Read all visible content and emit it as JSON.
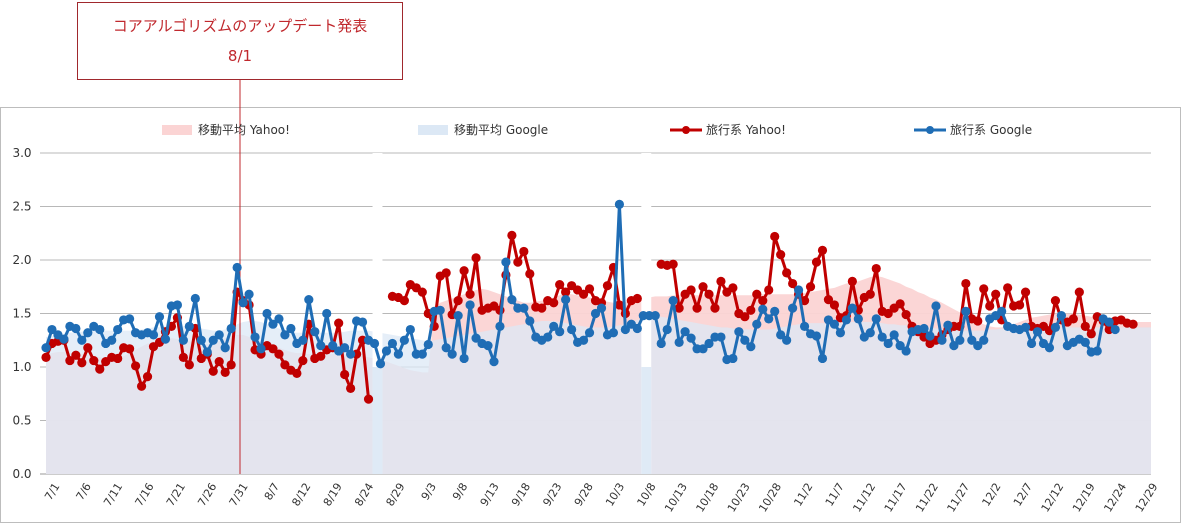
{
  "annotation": {
    "line1": "コアアルゴリズムのアップデート発表",
    "line2": "8/1",
    "date": "8/1"
  },
  "chart_data": {
    "type": "line",
    "x_start": "7/1",
    "x_end": "12/31",
    "ylim": [
      0,
      3.0
    ],
    "yticks": [
      "0.0",
      "0.5",
      "1.0",
      "1.5",
      "2.0",
      "2.5",
      "3.0"
    ],
    "grid": true,
    "legend_position": "top",
    "xtick_labels": [
      "7/1",
      "7/6",
      "7/11",
      "7/16",
      "7/21",
      "7/26",
      "7/31",
      "8/7",
      "8/12",
      "8/19",
      "8/24",
      "8/29",
      "9/3",
      "9/8",
      "9/13",
      "9/18",
      "9/23",
      "9/28",
      "10/3",
      "10/8",
      "10/13",
      "10/18",
      "10/23",
      "10/28",
      "11/2",
      "11/7",
      "11/12",
      "11/17",
      "11/22",
      "11/27",
      "12/2",
      "12/7",
      "12/12",
      "12/19",
      "12/24",
      "12/29"
    ],
    "series": [
      {
        "name": "移動平均 Yahoo!",
        "kind": "area",
        "color": "#fbd4d4",
        "values": [
          1.12,
          1.13,
          1.14,
          1.14,
          1.13,
          1.12,
          1.12,
          1.11,
          1.1,
          1.09,
          1.08,
          1.07,
          1.08,
          1.1,
          1.13,
          1.16,
          1.19,
          1.22,
          1.24,
          1.25,
          1.26,
          1.27,
          1.26,
          1.25,
          1.24,
          1.23,
          1.22,
          1.21,
          1.22,
          1.24,
          1.27,
          1.29,
          1.3,
          1.3,
          1.28,
          1.26,
          1.24,
          1.22,
          1.2,
          1.18,
          1.16,
          1.14,
          1.13,
          1.13,
          1.12,
          1.12,
          1.12,
          1.12,
          1.12,
          1.12,
          1.12,
          1.11,
          1.1,
          1.1,
          1.09,
          1.08,
          1.07,
          1.05,
          1.03,
          1.01,
          0.99,
          0.97,
          0.96,
          0.95,
          0.95,
          1.55,
          1.6,
          1.62,
          1.64,
          1.66,
          1.68,
          1.7,
          1.72,
          1.73,
          1.72,
          1.7,
          1.68,
          1.66,
          1.64,
          1.62,
          1.6,
          1.6,
          1.61,
          1.62,
          1.63,
          1.65,
          1.67,
          1.68,
          1.68,
          1.67,
          1.66,
          1.65,
          1.64,
          1.62,
          1.61,
          1.6,
          1.6,
          1.61,
          1.62,
          1.63,
          1.64,
          1.65,
          1.66,
          1.66,
          1.66,
          1.67,
          1.67,
          1.67,
          1.67,
          1.67,
          1.67,
          1.67,
          1.67,
          1.67,
          1.67,
          1.67,
          1.67,
          1.67,
          1.67,
          1.67,
          1.68,
          1.68,
          1.68,
          1.68,
          1.68,
          1.68,
          1.68,
          1.69,
          1.7,
          1.71,
          1.72,
          1.73,
          1.74,
          1.76,
          1.78,
          1.79,
          1.8,
          1.82,
          1.84,
          1.85,
          1.84,
          1.82,
          1.8,
          1.78,
          1.75,
          1.73,
          1.7,
          1.68,
          1.65,
          1.63,
          1.6,
          1.57,
          1.54,
          1.51,
          1.48,
          1.45,
          1.42,
          1.4,
          1.38,
          1.37,
          1.37,
          1.38,
          1.4,
          1.42,
          1.44,
          1.46,
          1.47,
          1.48,
          1.49,
          1.5,
          1.5,
          1.5,
          1.5,
          1.49,
          1.48,
          1.47,
          1.46,
          1.45,
          1.44,
          1.43,
          1.43,
          1.42,
          1.42,
          1.42,
          1.42,
          1.42
        ]
      },
      {
        "name": "移動平均 Google",
        "kind": "area",
        "color": "#dce8f5",
        "values": [
          1.28,
          1.29,
          1.3,
          1.31,
          1.32,
          1.33,
          1.33,
          1.34,
          1.34,
          1.34,
          1.34,
          1.34,
          1.34,
          1.34,
          1.34,
          1.34,
          1.35,
          1.36,
          1.37,
          1.37,
          1.38,
          1.38,
          1.38,
          1.38,
          1.38,
          1.37,
          1.36,
          1.35,
          1.34,
          1.34,
          1.35,
          1.37,
          1.4,
          1.42,
          1.43,
          1.43,
          1.42,
          1.4,
          1.38,
          1.36,
          1.34,
          1.33,
          1.32,
          1.32,
          1.32,
          1.32,
          1.32,
          1.32,
          1.32,
          1.32,
          1.33,
          1.34,
          1.34,
          1.34,
          1.34,
          1.33,
          1.32,
          1.31,
          1.3,
          1.29,
          1.28,
          1.27,
          1.26,
          1.25,
          1.24,
          1.25,
          1.26,
          1.27,
          1.28,
          1.29,
          1.3,
          1.31,
          1.32,
          1.33,
          1.34,
          1.35,
          1.36,
          1.37,
          1.38,
          1.39,
          1.4,
          1.41,
          1.42,
          1.43,
          1.43,
          1.43,
          1.42,
          1.41,
          1.4,
          1.39,
          1.38,
          1.37,
          1.37,
          1.37,
          1.37,
          1.38,
          1.39,
          1.4,
          1.42,
          1.44,
          1.46,
          1.48,
          1.48,
          1.47,
          1.46,
          1.45,
          1.44,
          1.43,
          1.42,
          1.41,
          1.4,
          1.39,
          1.38,
          1.37,
          1.37,
          1.36,
          1.35,
          1.35,
          1.35,
          1.35,
          1.35,
          1.35,
          1.36,
          1.37,
          1.38,
          1.39,
          1.4,
          1.41,
          1.41,
          1.41,
          1.41,
          1.41,
          1.41,
          1.41,
          1.41,
          1.42,
          1.42,
          1.42,
          1.42,
          1.42,
          1.41,
          1.4,
          1.4,
          1.39,
          1.39,
          1.38,
          1.38,
          1.37,
          1.37,
          1.36,
          1.36,
          1.35,
          1.35,
          1.34,
          1.34,
          1.34,
          1.34,
          1.34,
          1.35,
          1.35,
          1.36,
          1.36,
          1.37,
          1.37,
          1.37,
          1.37,
          1.37,
          1.37,
          1.37,
          1.37,
          1.37,
          1.37,
          1.37,
          1.37,
          1.37,
          1.37,
          1.37,
          1.37,
          1.37,
          1.37,
          1.37,
          1.37,
          1.37,
          1.37,
          1.37,
          1.37
        ]
      },
      {
        "name": "旅行系 Yahoo!",
        "kind": "line",
        "color": "#c00000",
        "values": [
          1.09,
          1.22,
          1.24,
          1.25,
          1.06,
          1.11,
          1.04,
          1.18,
          1.06,
          0.98,
          1.05,
          1.09,
          1.08,
          1.18,
          1.17,
          1.01,
          0.82,
          0.91,
          1.19,
          1.23,
          1.33,
          1.38,
          1.46,
          1.09,
          1.02,
          1.36,
          1.08,
          1.12,
          0.96,
          1.05,
          0.95,
          1.02,
          1.7,
          1.62,
          1.58,
          1.16,
          1.12,
          1.2,
          1.17,
          1.12,
          1.02,
          0.97,
          0.94,
          1.06,
          1.4,
          1.08,
          1.1,
          1.16,
          1.18,
          1.41,
          0.93,
          0.8,
          1.12,
          1.25,
          0.7,
          null,
          null,
          null,
          1.66,
          1.65,
          1.62,
          1.77,
          1.74,
          1.7,
          1.5,
          1.38,
          1.85,
          1.88,
          1.49,
          1.62,
          1.9,
          1.68,
          2.02,
          1.53,
          1.55,
          1.57,
          1.53,
          1.86,
          2.23,
          1.98,
          2.08,
          1.87,
          1.56,
          1.55,
          1.62,
          1.6,
          1.77,
          1.7,
          1.76,
          1.72,
          1.68,
          1.73,
          1.62,
          1.6,
          1.76,
          1.93,
          1.58,
          1.5,
          1.62,
          1.64,
          null,
          null,
          null,
          1.96,
          1.95,
          1.96,
          1.55,
          1.68,
          1.72,
          1.55,
          1.75,
          1.68,
          1.55,
          1.8,
          1.7,
          1.74,
          1.5,
          1.47,
          1.53,
          1.68,
          1.62,
          1.72,
          2.22,
          2.05,
          1.88,
          1.78,
          1.68,
          1.62,
          1.75,
          1.98,
          2.09,
          1.63,
          1.58,
          1.46,
          1.48,
          1.8,
          1.53,
          1.65,
          1.68,
          1.92,
          1.52,
          1.5,
          1.55,
          1.59,
          1.49,
          1.38,
          1.33,
          1.28,
          1.22,
          1.25,
          1.3,
          1.35,
          1.38,
          1.38,
          1.78,
          1.45,
          1.43,
          1.73,
          1.57,
          1.68,
          1.44,
          1.74,
          1.57,
          1.58,
          1.7,
          1.38,
          1.36,
          1.38,
          1.34,
          1.62,
          1.44,
          1.42,
          1.45,
          1.7,
          1.38,
          1.31,
          1.47,
          1.43,
          1.35,
          1.43,
          1.44,
          1.41,
          1.4
        ]
      },
      {
        "name": "旅行系 Google",
        "kind": "line",
        "color": "#1f6db5",
        "values": [
          1.18,
          1.35,
          1.3,
          1.26,
          1.38,
          1.36,
          1.25,
          1.32,
          1.38,
          1.35,
          1.22,
          1.25,
          1.35,
          1.44,
          1.45,
          1.32,
          1.3,
          1.32,
          1.3,
          1.47,
          1.26,
          1.57,
          1.58,
          1.25,
          1.38,
          1.64,
          1.25,
          1.14,
          1.25,
          1.3,
          1.18,
          1.36,
          1.93,
          1.6,
          1.68,
          1.28,
          1.17,
          1.5,
          1.4,
          1.45,
          1.3,
          1.36,
          1.22,
          1.25,
          1.63,
          1.33,
          1.2,
          1.5,
          1.2,
          1.15,
          1.18,
          1.12,
          1.43,
          1.42,
          1.25,
          1.22,
          1.03,
          1.15,
          1.22,
          1.12,
          1.25,
          1.35,
          1.12,
          1.12,
          1.21,
          1.52,
          1.53,
          1.18,
          1.12,
          1.48,
          1.08,
          1.58,
          1.27,
          1.22,
          1.2,
          1.05,
          1.38,
          1.98,
          1.63,
          1.55,
          1.55,
          1.43,
          1.28,
          1.25,
          1.28,
          1.38,
          1.33,
          1.63,
          1.35,
          1.23,
          1.25,
          1.32,
          1.5,
          1.55,
          1.3,
          1.32,
          2.52,
          1.35,
          1.4,
          1.36,
          1.48,
          1.48,
          1.48,
          1.22,
          1.35,
          1.62,
          1.23,
          1.33,
          1.27,
          1.17,
          1.17,
          1.22,
          1.28,
          1.28,
          1.07,
          1.08,
          1.33,
          1.25,
          1.19,
          1.4,
          1.54,
          1.45,
          1.52,
          1.3,
          1.25,
          1.55,
          1.72,
          1.38,
          1.31,
          1.29,
          1.08,
          1.44,
          1.4,
          1.32,
          1.44,
          1.55,
          1.45,
          1.28,
          1.32,
          1.45,
          1.28,
          1.22,
          1.3,
          1.2,
          1.15,
          1.33,
          1.35,
          1.36,
          1.29,
          1.57,
          1.25,
          1.39,
          1.2,
          1.25,
          1.52,
          1.25,
          1.2,
          1.25,
          1.45,
          1.48,
          1.52,
          1.38,
          1.36,
          1.35,
          1.37,
          1.22,
          1.33,
          1.22,
          1.18,
          1.37,
          1.48,
          1.2,
          1.23,
          1.26,
          1.23,
          1.14,
          1.15,
          1.45,
          1.42,
          1.35
        ]
      }
    ]
  }
}
